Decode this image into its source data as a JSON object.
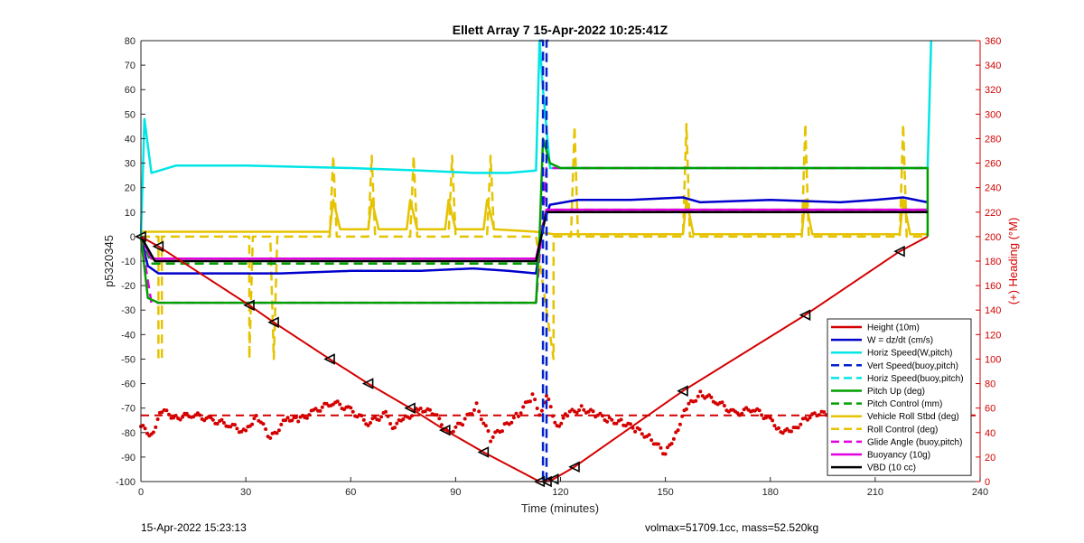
{
  "chart_data": {
    "type": "line",
    "title": "Ellett Array 7 15-Apr-2022 10:25:41Z",
    "xlabel": "Time (minutes)",
    "ylabel": "p5320345",
    "y2label": "(+) Heading (°M)",
    "xlim": [
      0,
      240
    ],
    "ylim": [
      -100,
      80
    ],
    "y2lim": [
      0,
      360
    ],
    "x_ticks": [
      0,
      30,
      60,
      90,
      120,
      150,
      180,
      210,
      240
    ],
    "y_ticks": [
      80,
      70,
      60,
      50,
      40,
      30,
      20,
      10,
      0,
      -10,
      -20,
      -30,
      -40,
      -50,
      -60,
      -70,
      -80,
      -90,
      -100
    ],
    "y2_ticks": [
      360,
      340,
      320,
      300,
      280,
      260,
      240,
      220,
      200,
      180,
      160,
      140,
      120,
      100,
      80,
      60,
      40,
      20,
      0
    ],
    "grid": false,
    "legend_position": "bottom-right",
    "series": [
      {
        "name": "Height (10m)",
        "color": "#d40000",
        "style": "solid",
        "x": [
          0,
          5,
          31,
          38,
          54,
          65,
          77,
          87,
          98,
          114,
          116,
          118,
          124,
          155,
          190,
          217,
          225
        ],
        "y": [
          0,
          -4,
          -28,
          -35,
          -50,
          -60,
          -70,
          -79,
          -88,
          -100,
          -100,
          -99,
          -94,
          -63,
          -32,
          -6,
          0
        ]
      },
      {
        "name": "W = dz/dt (cm/s)",
        "color": "#0000cc",
        "style": "solid",
        "x": [
          0,
          2,
          5,
          20,
          40,
          60,
          80,
          95,
          105,
          113,
          115,
          117,
          125,
          140,
          155,
          160,
          180,
          200,
          210,
          218,
          225
        ],
        "y": [
          0,
          -12,
          -15,
          -15,
          -15,
          -14,
          -14,
          -13,
          -14,
          -15,
          5,
          13,
          15,
          15,
          16,
          14,
          15,
          14,
          15,
          16,
          14
        ]
      },
      {
        "name": "Horiz Speed(W,pitch)",
        "color": "#00e5e5",
        "style": "solid",
        "x": [
          0,
          1,
          3,
          10,
          30,
          60,
          80,
          95,
          105,
          113,
          114,
          115,
          117,
          120,
          140,
          160,
          180,
          200,
          220,
          225,
          226
        ],
        "y": [
          0,
          48,
          26,
          29,
          29,
          28,
          27,
          26,
          26,
          27,
          80,
          60,
          28,
          28,
          28,
          28,
          28,
          28,
          28,
          28,
          80
        ]
      },
      {
        "name": "Vert Speed(buoy,pitch)",
        "color": "#0022cc",
        "style": "dash",
        "x": [
          114,
          115,
          115,
          116,
          116,
          117
        ],
        "y": [
          80,
          80,
          -100,
          -100,
          80,
          80
        ]
      },
      {
        "name": "Horiz Speed(buoy,pitch)",
        "color": "#00e5e5",
        "style": "dash",
        "x": [],
        "y": []
      },
      {
        "name": "Pitch Up (deg)",
        "color": "#00a000",
        "style": "solid",
        "x": [
          0,
          2,
          5,
          40,
          80,
          113,
          114,
          115,
          117,
          120,
          160,
          200,
          225,
          225
        ],
        "y": [
          0,
          -25,
          -27,
          -27,
          -27,
          -27,
          0,
          40,
          30,
          28,
          28,
          28,
          28,
          0
        ]
      },
      {
        "name": "Pitch Control (mm)",
        "color": "#00a000",
        "style": "dash",
        "x": [
          0,
          3,
          113,
          116,
          225
        ],
        "y": [
          0,
          -11,
          -11,
          11,
          11
        ]
      },
      {
        "name": "Vehicle Roll Stbd (deg)",
        "color": "#e5c300",
        "style": "solid",
        "x": [
          0,
          4,
          30,
          54,
          55,
          57,
          65,
          66,
          68,
          76,
          77,
          79,
          87,
          88,
          90,
          98,
          99,
          101,
          113,
          118,
          155,
          156,
          158,
          189,
          190,
          192,
          217,
          218,
          220,
          225
        ],
        "y": [
          2,
          2,
          2,
          2,
          15,
          3,
          3,
          15,
          3,
          3,
          15,
          3,
          3,
          15,
          3,
          3,
          15,
          3,
          2,
          1,
          1,
          15,
          1,
          1,
          15,
          1,
          1,
          15,
          1,
          1
        ]
      },
      {
        "name": "Roll Control (deg)",
        "color": "#e5c300",
        "style": "dash",
        "x": [
          0,
          5,
          5,
          6,
          6,
          30,
          31,
          31,
          32,
          37,
          38,
          38,
          39,
          54,
          55,
          55,
          56,
          65,
          66,
          66,
          67,
          77,
          78,
          78,
          79,
          88,
          89,
          89,
          90,
          99,
          100,
          100,
          101,
          113,
          118,
          118,
          119,
          123,
          124,
          124,
          125,
          155,
          156,
          156,
          157,
          189,
          190,
          190,
          191,
          217,
          218,
          218,
          219,
          225
        ],
        "y": [
          0,
          0,
          -50,
          -50,
          0,
          0,
          0,
          -50,
          0,
          0,
          -50,
          -50,
          0,
          0,
          33,
          33,
          0,
          0,
          33,
          33,
          0,
          0,
          33,
          33,
          0,
          0,
          33,
          33,
          0,
          0,
          33,
          33,
          0,
          0,
          -50,
          0,
          0,
          0,
          45,
          45,
          0,
          0,
          46,
          46,
          0,
          0,
          46,
          46,
          0,
          0,
          46,
          46,
          0,
          0
        ]
      },
      {
        "name": "Glide Angle (buoy,pitch)",
        "color": "#e000e0",
        "style": "dash",
        "x": [
          0,
          3,
          113,
          116,
          225
        ],
        "y": [
          0,
          -27,
          -27,
          28,
          28
        ]
      },
      {
        "name": "Buoyancy (10g)",
        "color": "#e000e0",
        "style": "solid",
        "x": [
          0,
          3,
          113,
          116,
          225
        ],
        "y": [
          0,
          -9,
          -9,
          11,
          11
        ]
      },
      {
        "name": "VBD (10 cc)",
        "color": "#000000",
        "style": "solid",
        "x": [
          0,
          4,
          113,
          116,
          225
        ],
        "y": [
          0,
          -10,
          -10,
          10,
          10
        ]
      }
    ],
    "heading": {
      "color": "#d40000",
      "mean_deg": 54,
      "x": [
        0,
        3,
        6,
        10,
        15,
        20,
        25,
        30,
        33,
        37,
        42,
        45,
        50,
        55,
        60,
        65,
        70,
        72,
        75,
        80,
        84,
        88,
        92,
        96,
        100,
        104,
        108,
        112,
        114,
        116,
        119,
        122,
        126,
        130,
        134,
        138,
        142,
        146,
        150,
        153,
        156,
        160,
        165,
        170,
        175,
        180,
        183,
        186,
        190,
        194,
        198,
        202,
        206,
        210,
        214,
        218,
        222,
        225
      ],
      "y": [
        45,
        38,
        58,
        52,
        55,
        50,
        47,
        40,
        55,
        35,
        52,
        50,
        58,
        65,
        58,
        48,
        55,
        45,
        50,
        60,
        55,
        40,
        48,
        62,
        35,
        45,
        55,
        70,
        55,
        70,
        45,
        55,
        60,
        55,
        50,
        48,
        42,
        35,
        22,
        40,
        60,
        72,
        65,
        55,
        60,
        50,
        42,
        40,
        52,
        55,
        56,
        50,
        54,
        40,
        50,
        54,
        43,
        52
      ]
    },
    "markers": {
      "shape": "triangle",
      "x": [
        0,
        5,
        31,
        38,
        54,
        65,
        77,
        87,
        98,
        114,
        116,
        118,
        124,
        155,
        190,
        217
      ],
      "y": [
        0,
        -4,
        -28,
        -35,
        -50,
        -60,
        -70,
        -79,
        -88,
        -100,
        -100,
        -99,
        -94,
        -63,
        -32,
        -6
      ]
    }
  },
  "footer": {
    "left": "15-Apr-2022 15:23:13",
    "right": "volmax=51709.1cc, mass=52.520kg"
  }
}
